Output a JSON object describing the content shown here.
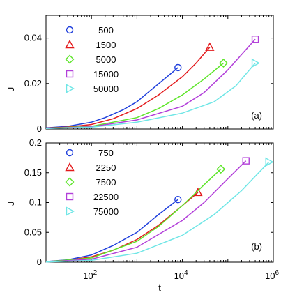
{
  "chart_data": [
    {
      "type": "line",
      "panel_label": "(a)",
      "ylabel": "J",
      "xlabel": "",
      "xscale": "log",
      "xlim": [
        10,
        1000000
      ],
      "ylim": [
        0,
        0.05
      ],
      "yticks": [
        0,
        0.02,
        0.04
      ],
      "ytick_labels": [
        "0",
        "0.02",
        "0.04"
      ],
      "legend_position": "top-left",
      "series": [
        {
          "name": "500",
          "color": "#1f3fdc",
          "marker": "circle",
          "x": [
            10,
            30,
            100,
            200,
            500,
            1000,
            2000,
            4000,
            8000
          ],
          "y": [
            0.0005,
            0.0012,
            0.003,
            0.005,
            0.0085,
            0.012,
            0.017,
            0.022,
            0.027
          ]
        },
        {
          "name": "1500",
          "color": "#e31a1c",
          "marker": "triangle",
          "x": [
            10,
            30,
            100,
            300,
            1000,
            3000,
            10000,
            20000,
            40000
          ],
          "y": [
            0.0004,
            0.0009,
            0.002,
            0.0045,
            0.009,
            0.015,
            0.023,
            0.029,
            0.036
          ]
        },
        {
          "name": "5000",
          "color": "#5ee52a",
          "marker": "diamond",
          "x": [
            10,
            100,
            1000,
            3000,
            10000,
            30000,
            80000
          ],
          "y": [
            0.0003,
            0.0012,
            0.005,
            0.009,
            0.015,
            0.022,
            0.029
          ]
        },
        {
          "name": "15000",
          "color": "#b23fd9",
          "marker": "square",
          "x": [
            10,
            100,
            1000,
            10000,
            30000,
            100000,
            400000
          ],
          "y": [
            0.0002,
            0.001,
            0.004,
            0.01,
            0.016,
            0.026,
            0.0395
          ]
        },
        {
          "name": "50000",
          "color": "#6fe6e6",
          "marker": "triangle-right",
          "x": [
            10,
            100,
            1000,
            10000,
            50000,
            150000,
            400000
          ],
          "y": [
            0.0002,
            0.0008,
            0.003,
            0.007,
            0.012,
            0.019,
            0.029
          ]
        }
      ]
    },
    {
      "type": "line",
      "panel_label": "(b)",
      "ylabel": "J",
      "xlabel": "t",
      "xscale": "log",
      "xlim": [
        10,
        1000000
      ],
      "ylim": [
        0,
        0.2
      ],
      "yticks": [
        0,
        0.05,
        0.1,
        0.15,
        0.2
      ],
      "ytick_labels": [
        "0",
        "0.05",
        "0.1",
        "0.15",
        "0.2"
      ],
      "xtick_labels": [
        {
          "base": "10",
          "exp": "2"
        },
        {
          "base": "10",
          "exp": "4"
        },
        {
          "base": "10",
          "exp": "6"
        }
      ],
      "xtick_values": [
        100,
        10000,
        1000000
      ],
      "legend_position": "top-left",
      "series": [
        {
          "name": "750",
          "color": "#1f3fdc",
          "marker": "circle",
          "x": [
            10,
            30,
            100,
            300,
            1000,
            3000,
            8000
          ],
          "y": [
            0.001,
            0.004,
            0.012,
            0.028,
            0.05,
            0.08,
            0.105
          ]
        },
        {
          "name": "2250",
          "color": "#e31a1c",
          "marker": "triangle",
          "x": [
            10,
            30,
            100,
            300,
            1000,
            3000,
            10000,
            22000
          ],
          "y": [
            0.0008,
            0.003,
            0.009,
            0.02,
            0.038,
            0.062,
            0.095,
            0.117
          ]
        },
        {
          "name": "7500",
          "color": "#5ee52a",
          "marker": "diamond",
          "x": [
            10,
            100,
            1000,
            3000,
            10000,
            30000,
            70000
          ],
          "y": [
            0.0006,
            0.007,
            0.035,
            0.06,
            0.095,
            0.13,
            0.156
          ]
        },
        {
          "name": "22500",
          "color": "#b23fd9",
          "marker": "square",
          "x": [
            10,
            100,
            1000,
            10000,
            30000,
            100000,
            250000
          ],
          "y": [
            0.0005,
            0.005,
            0.025,
            0.07,
            0.1,
            0.14,
            0.17
          ]
        },
        {
          "name": "75000",
          "color": "#6fe6e6",
          "marker": "triangle-right",
          "x": [
            10,
            100,
            1000,
            10000,
            50000,
            200000,
            800000
          ],
          "y": [
            0.0004,
            0.003,
            0.015,
            0.045,
            0.08,
            0.12,
            0.168
          ]
        }
      ]
    }
  ]
}
